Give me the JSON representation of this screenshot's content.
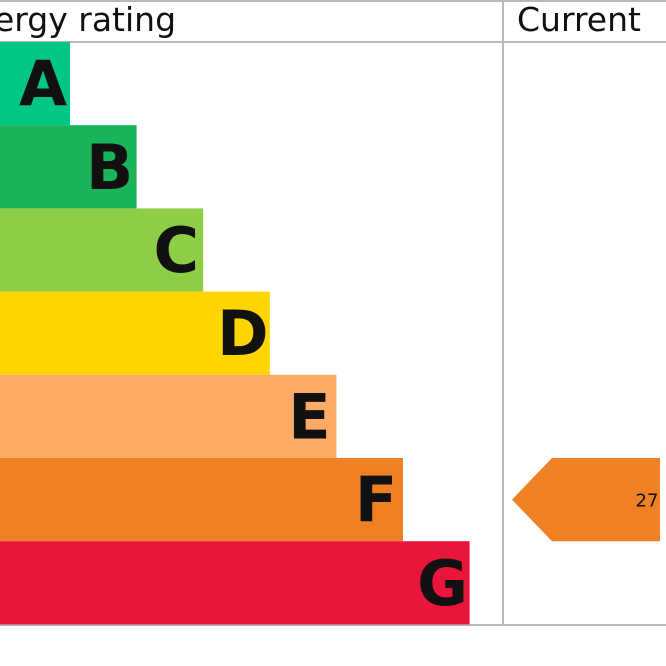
{
  "chart_data": {
    "type": "bar",
    "header": {
      "rating_label": "ergy rating",
      "current_label": "Current"
    },
    "bands": [
      {
        "letter": "A",
        "color": "#00c781"
      },
      {
        "letter": "B",
        "color": "#19b459"
      },
      {
        "letter": "C",
        "color": "#8dce46"
      },
      {
        "letter": "D",
        "color": "#ffd500"
      },
      {
        "letter": "E",
        "color": "#fcaa65"
      },
      {
        "letter": "F",
        "color": "#ef8023"
      },
      {
        "letter": "G",
        "color": "#e9153b"
      }
    ],
    "current": {
      "value": "27",
      "band": "F",
      "color": "#ef8023"
    }
  }
}
